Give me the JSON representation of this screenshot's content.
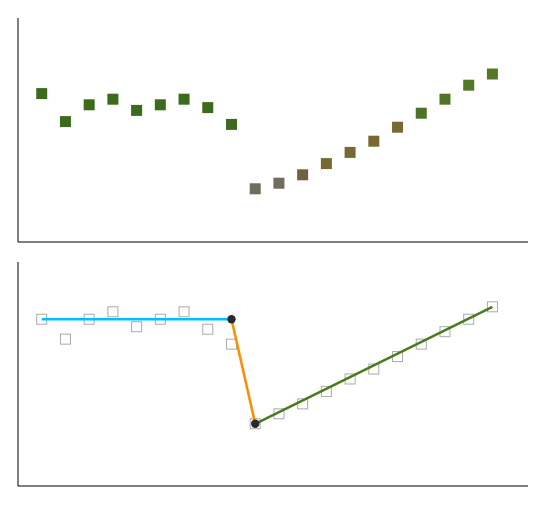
{
  "chart_data": [
    {
      "type": "scatter",
      "xlim": [
        0.0,
        21.5
      ],
      "ylim": [
        0.25,
        1.05
      ],
      "tick_labels": false,
      "grid": false,
      "series": [
        {
          "type": "scatter",
          "marker": "square",
          "x": [
            1,
            2,
            3,
            4,
            5,
            6,
            7,
            8,
            9,
            10,
            11,
            12,
            13,
            14,
            15,
            16,
            17,
            18,
            19,
            20
          ],
          "values": [
            0.78,
            0.68,
            0.74,
            0.76,
            0.72,
            0.74,
            0.76,
            0.73,
            0.67,
            0.44,
            0.46,
            0.49,
            0.53,
            0.57,
            0.61,
            0.66,
            0.71,
            0.76,
            0.81,
            0.85
          ],
          "colors": [
            "#3d6b1e",
            "#3d6b1e",
            "#3d6b1e",
            "#3d6b1e",
            "#3d6b1e",
            "#3d6b1e",
            "#3d6b1e",
            "#3d6b1e",
            "#3d6b1e",
            "#6e6e5a",
            "#6e6e5a",
            "#726040",
            "#7a6833",
            "#7a6833",
            "#7a6833",
            "#7a6833",
            "#4e7228",
            "#517526",
            "#547828",
            "#547828"
          ]
        }
      ]
    },
    {
      "type": "scatter",
      "xlim": [
        0.0,
        21.5
      ],
      "ylim": [
        0.05,
        0.95
      ],
      "tick_labels": false,
      "grid": false,
      "series": [
        {
          "type": "scatter",
          "marker": "open-square",
          "color": "#aaaaaa",
          "x": [
            1,
            2,
            3,
            4,
            5,
            6,
            7,
            8,
            9,
            10,
            11,
            12,
            13,
            14,
            15,
            16,
            17,
            18,
            19,
            20
          ],
          "values": [
            0.72,
            0.64,
            0.72,
            0.75,
            0.69,
            0.72,
            0.75,
            0.68,
            0.62,
            0.3,
            0.34,
            0.38,
            0.43,
            0.48,
            0.52,
            0.57,
            0.62,
            0.67,
            0.72,
            0.77
          ]
        },
        {
          "type": "line",
          "color": "#00bfff",
          "x": [
            1,
            9
          ],
          "values": [
            0.72,
            0.72
          ]
        },
        {
          "type": "line",
          "color": "#ff8c00",
          "x": [
            9,
            10
          ],
          "values": [
            0.72,
            0.3
          ]
        },
        {
          "type": "line",
          "color": "#4a7a1e",
          "x": [
            10,
            20
          ],
          "values": [
            0.3,
            0.77
          ]
        },
        {
          "type": "scatter",
          "marker": "circle",
          "color": "#2a2a2a",
          "x": [
            9,
            10
          ],
          "values": [
            0.72,
            0.3
          ]
        }
      ]
    }
  ]
}
